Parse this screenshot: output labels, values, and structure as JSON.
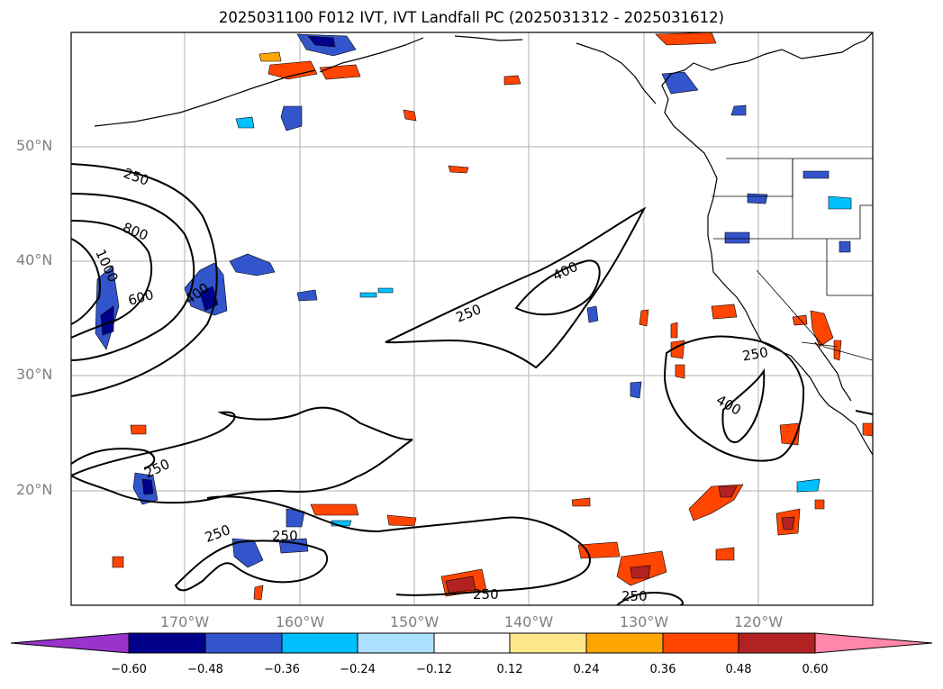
{
  "title": "2025031100 F012 IVT, IVT Landfall PC (2025031312 - 2025031612)",
  "axes": {
    "lat_labels": [
      "50°N",
      "40°N",
      "30°N",
      "20°N"
    ],
    "lon_labels": [
      "170°W",
      "160°W",
      "150°W",
      "140°W",
      "130°W",
      "120°W"
    ]
  },
  "contour_labels": [
    "250",
    "800",
    "1000",
    "600",
    "400",
    "250",
    "400",
    "250",
    "400",
    "250",
    "250",
    "250",
    "250",
    "250"
  ],
  "colorbar": {
    "ticks": [
      "−0.60",
      "−0.48",
      "−0.36",
      "−0.24",
      "−0.12",
      "0.12",
      "0.24",
      "0.36",
      "0.48",
      "0.60"
    ],
    "colors": [
      "#9933cc",
      "#00008b",
      "#3355cc",
      "#00bfff",
      "#aee0ff",
      "#ffffff",
      "#ffe88c",
      "#ffa500",
      "#ff4500",
      "#b22222",
      "#ff88aa"
    ]
  }
}
